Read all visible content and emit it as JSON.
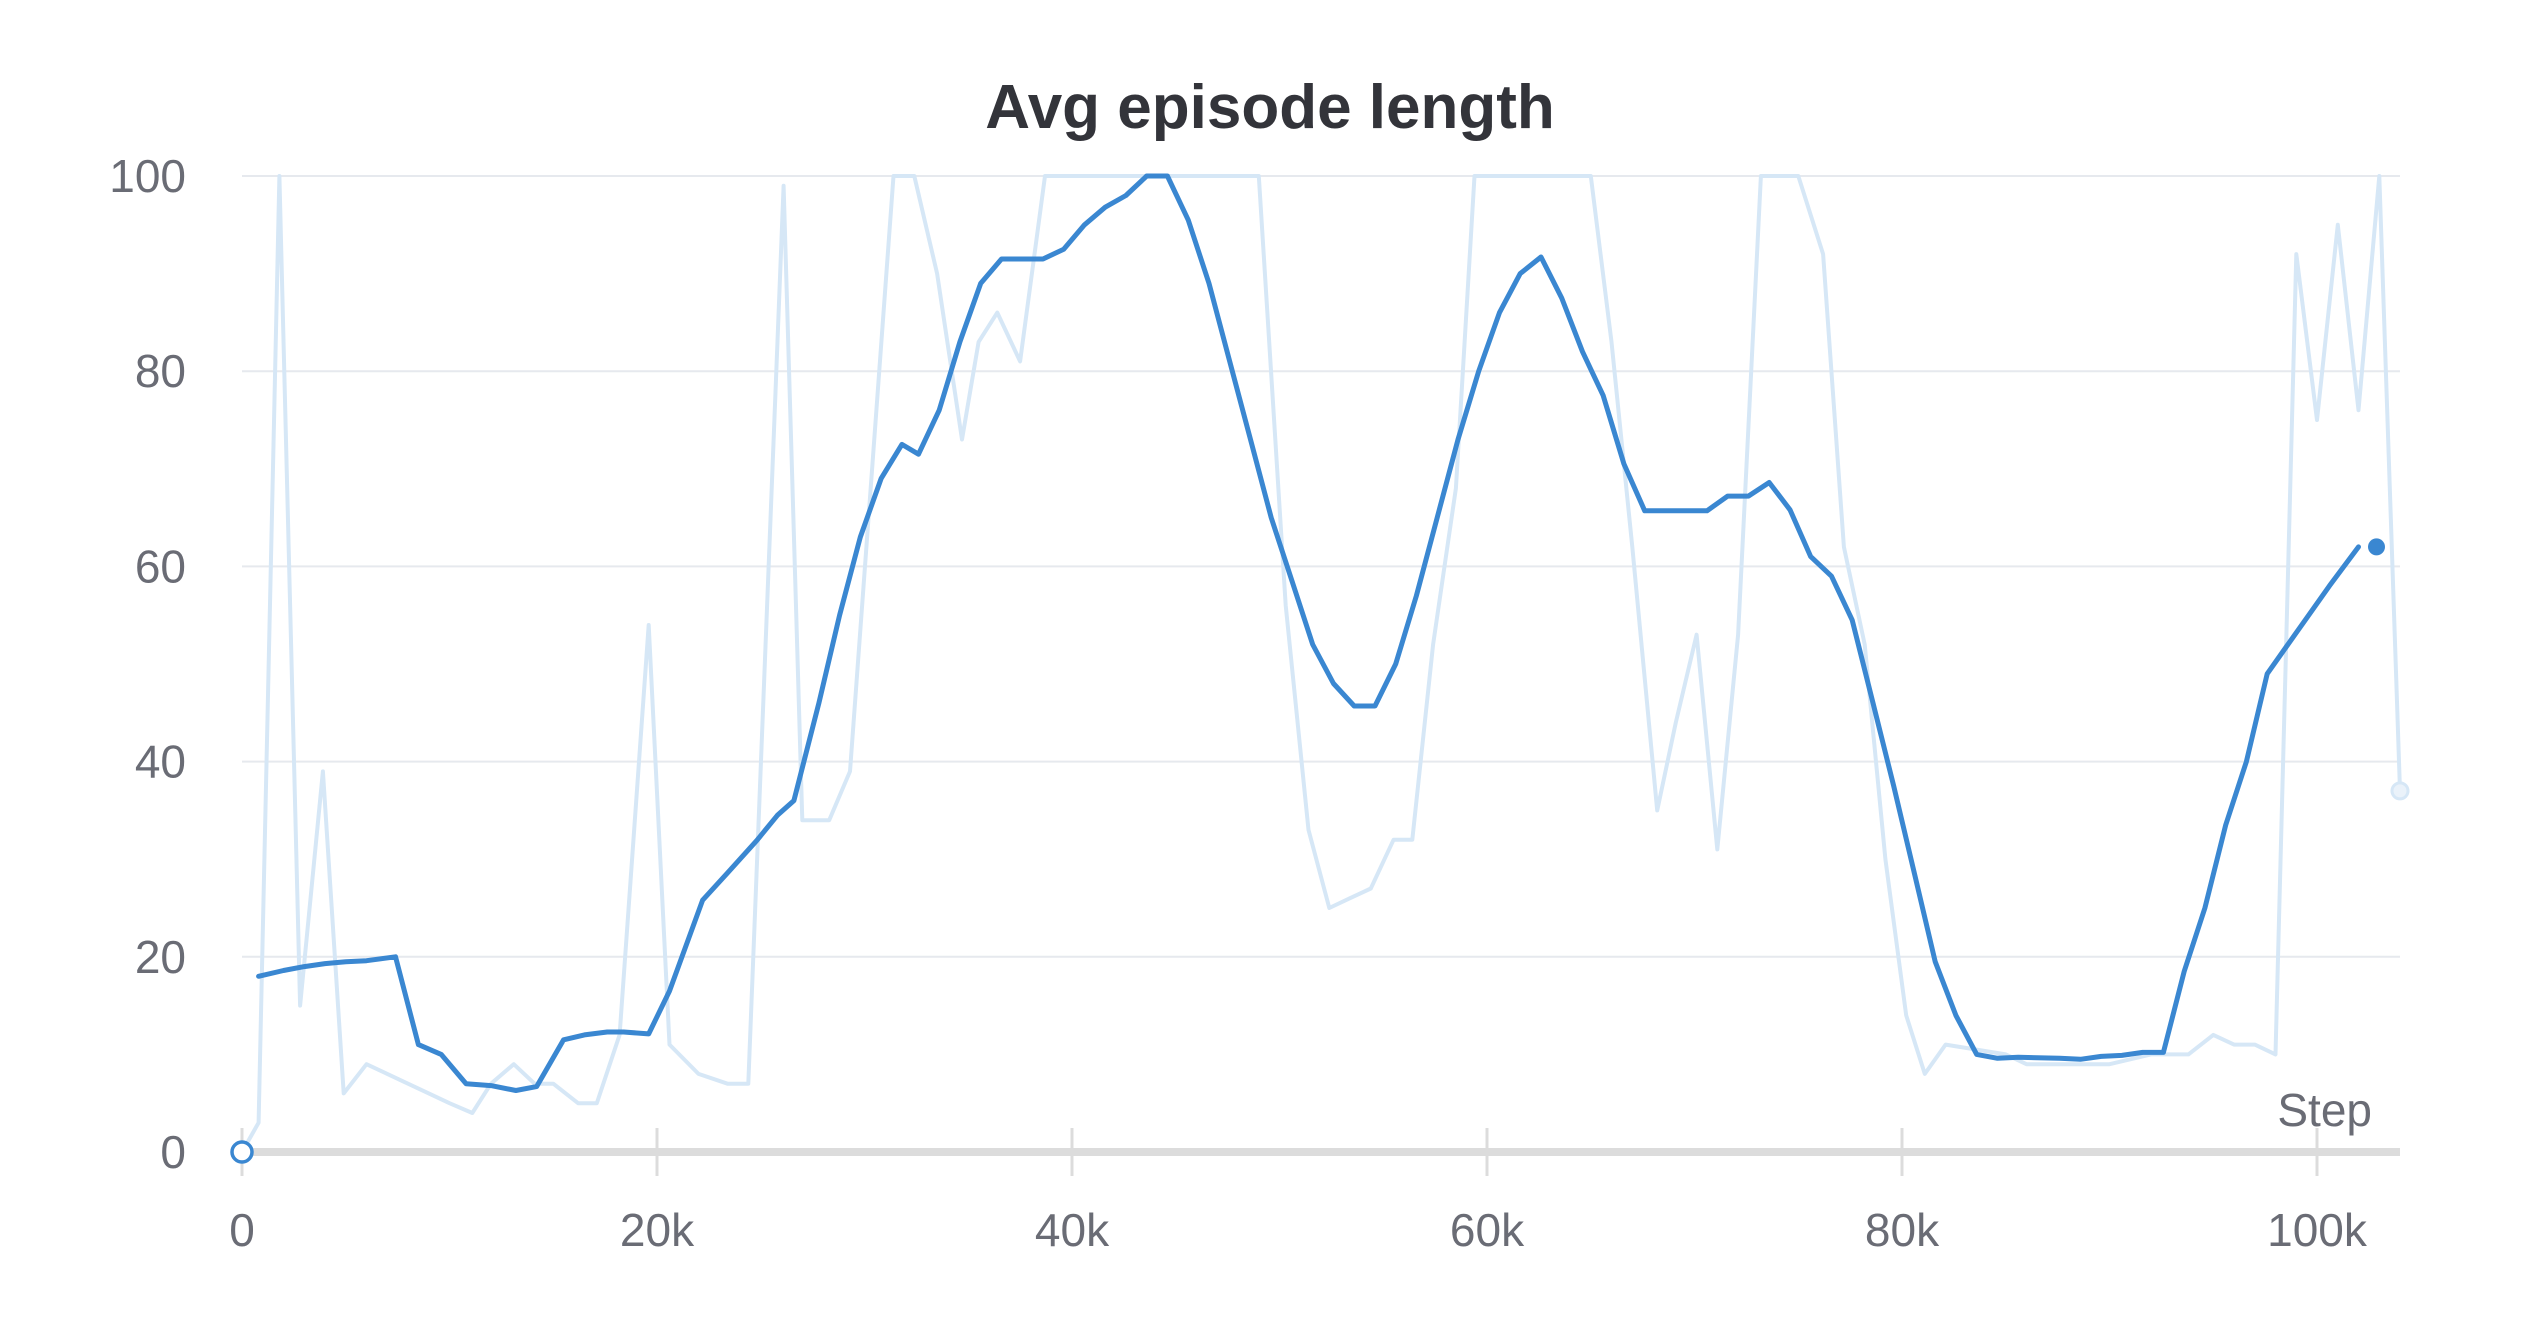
{
  "chart_data": {
    "type": "line",
    "title": "Avg episode length",
    "xlabel": "Step",
    "ylabel": "",
    "xlim": [
      0,
      104000
    ],
    "ylim": [
      0,
      100
    ],
    "x_ticks": [
      0,
      20000,
      40000,
      60000,
      80000,
      100000
    ],
    "x_tick_labels": [
      "0",
      "20k",
      "40k",
      "60k",
      "80k",
      "100k"
    ],
    "y_ticks": [
      0,
      20,
      40,
      60,
      80,
      100
    ],
    "y_tick_labels": [
      "0",
      "20",
      "40",
      "60",
      "80",
      "100"
    ],
    "grid": "horizontal",
    "colors": {
      "smoothed": "#3a87d1",
      "raw": "#d6e7f6",
      "grid": "#e6e9ee",
      "axis": "#dcdcdc"
    },
    "series": [
      {
        "role": "raw",
        "points": [
          [
            0,
            0
          ],
          [
            800,
            3
          ],
          [
            1800,
            100
          ],
          [
            2800,
            15
          ],
          [
            3900,
            39
          ],
          [
            4900,
            6
          ],
          [
            6000,
            9
          ],
          [
            7000,
            8
          ],
          [
            8000,
            7
          ],
          [
            9000,
            6
          ],
          [
            10000,
            5
          ],
          [
            11100,
            4
          ],
          [
            12000,
            7
          ],
          [
            13100,
            9
          ],
          [
            14100,
            7
          ],
          [
            15000,
            7
          ],
          [
            16200,
            5
          ],
          [
            17100,
            5
          ],
          [
            18200,
            12
          ],
          [
            19600,
            54
          ],
          [
            20600,
            11
          ],
          [
            22000,
            8
          ],
          [
            23400,
            7
          ],
          [
            24400,
            7
          ],
          [
            26100,
            99
          ],
          [
            27000,
            34
          ],
          [
            28300,
            34
          ],
          [
            29300,
            39
          ],
          [
            31400,
            100
          ],
          [
            32400,
            100
          ],
          [
            33500,
            90
          ],
          [
            34700,
            73
          ],
          [
            35500,
            83
          ],
          [
            36400,
            86
          ],
          [
            37500,
            81
          ],
          [
            38700,
            100
          ],
          [
            40700,
            100
          ],
          [
            44000,
            100
          ],
          [
            48000,
            100
          ],
          [
            49000,
            100
          ],
          [
            50300,
            56
          ],
          [
            51400,
            33
          ],
          [
            52400,
            25
          ],
          [
            53400,
            26
          ],
          [
            54400,
            27
          ],
          [
            55500,
            32
          ],
          [
            56400,
            32
          ],
          [
            57400,
            52
          ],
          [
            58500,
            68
          ],
          [
            59400,
            100
          ],
          [
            61000,
            100
          ],
          [
            65000,
            100
          ],
          [
            66000,
            83
          ],
          [
            67000,
            62
          ],
          [
            68200,
            35
          ],
          [
            69100,
            44
          ],
          [
            70100,
            53
          ],
          [
            71100,
            31
          ],
          [
            72100,
            53
          ],
          [
            73200,
            100
          ],
          [
            75000,
            100
          ],
          [
            76200,
            92
          ],
          [
            77200,
            62
          ],
          [
            78200,
            52
          ],
          [
            79200,
            30
          ],
          [
            80200,
            14
          ],
          [
            81100,
            8
          ],
          [
            82100,
            11
          ],
          [
            85000,
            10
          ],
          [
            86000,
            9
          ],
          [
            88000,
            9
          ],
          [
            90000,
            9
          ],
          [
            92000,
            10
          ],
          [
            93800,
            10
          ],
          [
            95000,
            12
          ],
          [
            96000,
            11
          ],
          [
            97000,
            11
          ],
          [
            98000,
            10
          ],
          [
            99000,
            92
          ],
          [
            100000,
            75
          ],
          [
            101000,
            95
          ],
          [
            102000,
            76
          ],
          [
            103000,
            100
          ],
          [
            104000,
            37
          ]
        ]
      },
      {
        "role": "smoothed",
        "points": [
          [
            800,
            18
          ],
          [
            2000,
            18.6
          ],
          [
            3000,
            19
          ],
          [
            4000,
            19.3
          ],
          [
            5000,
            19.5
          ],
          [
            6000,
            19.6
          ],
          [
            7400,
            20
          ],
          [
            8500,
            11
          ],
          [
            9600,
            10
          ],
          [
            10800,
            7
          ],
          [
            12000,
            6.8
          ],
          [
            13200,
            6.3
          ],
          [
            14200,
            6.7
          ],
          [
            15500,
            11.5
          ],
          [
            16500,
            12
          ],
          [
            17600,
            12.3
          ],
          [
            18400,
            12.3
          ],
          [
            19600,
            12.1
          ],
          [
            20600,
            16.5
          ],
          [
            22200,
            25.8
          ],
          [
            23400,
            28.6
          ],
          [
            24800,
            31.9
          ],
          [
            25800,
            34.5
          ],
          [
            26600,
            36
          ],
          [
            27800,
            46
          ],
          [
            28800,
            55
          ],
          [
            29800,
            63
          ],
          [
            30800,
            69
          ],
          [
            31800,
            72.5
          ],
          [
            32600,
            71.5
          ],
          [
            33600,
            76
          ],
          [
            34600,
            83
          ],
          [
            35600,
            89
          ],
          [
            36600,
            91.5
          ],
          [
            38600,
            91.5
          ],
          [
            39600,
            92.5
          ],
          [
            40600,
            95
          ],
          [
            41600,
            96.8
          ],
          [
            42600,
            98
          ],
          [
            43600,
            100
          ],
          [
            44600,
            100
          ],
          [
            45600,
            95.5
          ],
          [
            46600,
            89
          ],
          [
            47600,
            81
          ],
          [
            48600,
            73
          ],
          [
            49600,
            65
          ],
          [
            50600,
            58.5
          ],
          [
            51600,
            52
          ],
          [
            52600,
            48
          ],
          [
            53600,
            45.7
          ],
          [
            54600,
            45.7
          ],
          [
            55600,
            50
          ],
          [
            56600,
            57
          ],
          [
            57600,
            65
          ],
          [
            58600,
            73
          ],
          [
            59600,
            80
          ],
          [
            60600,
            86
          ],
          [
            61600,
            90
          ],
          [
            62600,
            91.7
          ],
          [
            63600,
            87.5
          ],
          [
            64600,
            82
          ],
          [
            65600,
            77.5
          ],
          [
            66600,
            70.5
          ],
          [
            67600,
            65.7
          ],
          [
            70600,
            65.7
          ],
          [
            71600,
            67.2
          ],
          [
            72600,
            67.2
          ],
          [
            73600,
            68.6
          ],
          [
            74600,
            65.8
          ],
          [
            75600,
            61
          ],
          [
            76600,
            59
          ],
          [
            77600,
            54.5
          ],
          [
            78600,
            46
          ],
          [
            79600,
            37.5
          ],
          [
            80600,
            28.5
          ],
          [
            81600,
            19.5
          ],
          [
            82600,
            14
          ],
          [
            83600,
            10
          ],
          [
            84600,
            9.6
          ],
          [
            85600,
            9.7
          ],
          [
            87600,
            9.6
          ],
          [
            88600,
            9.5
          ],
          [
            89600,
            9.8
          ],
          [
            90600,
            9.9
          ],
          [
            91600,
            10.2
          ],
          [
            92600,
            10.2
          ],
          [
            93600,
            18.5
          ],
          [
            94600,
            25
          ],
          [
            95600,
            33.5
          ],
          [
            96600,
            40
          ],
          [
            97600,
            49
          ],
          [
            98600,
            52
          ],
          [
            99600,
            55
          ],
          [
            100600,
            58
          ],
          [
            102000,
            62
          ]
        ]
      }
    ]
  }
}
